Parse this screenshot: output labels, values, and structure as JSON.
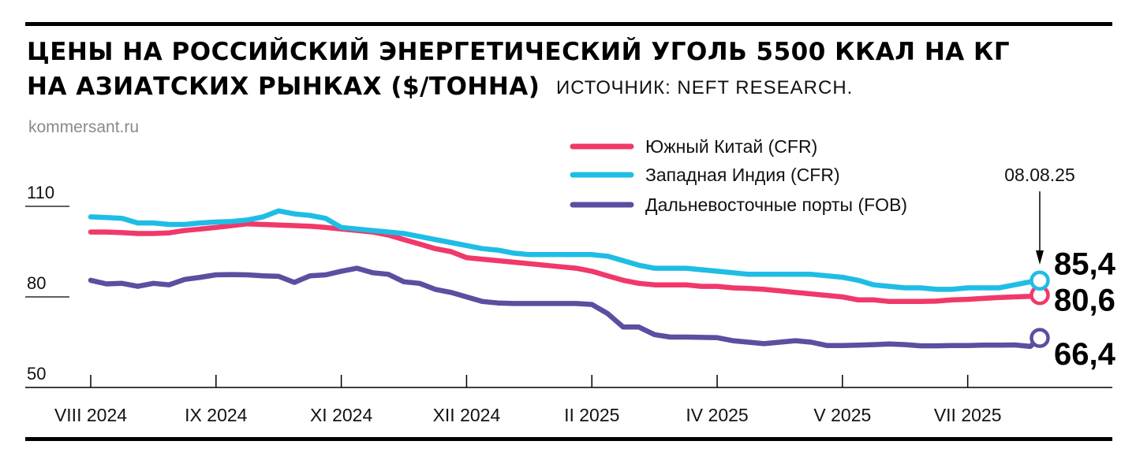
{
  "header": {
    "title_line1": "ЦЕНЫ НА РОССИЙСКИЙ ЭНЕРГЕТИЧЕСКИЙ УГОЛЬ 5500 ККАЛ НА КГ",
    "title_line2": "НА АЗИАТСКИХ РЫНКАХ ($/ТОННА)",
    "source": "ИСТОЧНИК: NEFT RESEARCH.",
    "site": "kommersant.ru"
  },
  "chart_data": {
    "type": "line",
    "title": "ЦЕНЫ НА РОССИЙСКИЙ ЭНЕРГЕТИЧЕСКИЙ УГОЛЬ 5500 ККАЛ НА КГ НА АЗИАТСКИХ РЫНКАХ ($/ТОННА)",
    "ylim": [
      50,
      115
    ],
    "yticks": [
      {
        "value": 110,
        "label": "110"
      },
      {
        "value": 80,
        "label": "80"
      },
      {
        "value": 50,
        "label": "50"
      }
    ],
    "xticks": [
      {
        "x": 0,
        "label": "VIII 2024"
      },
      {
        "x": 4,
        "label": "IX 2024"
      },
      {
        "x": 8,
        "label": "XI 2024"
      },
      {
        "x": 12,
        "label": "XII 2024"
      },
      {
        "x": 16,
        "label": "II 2025"
      },
      {
        "x": 20,
        "label": "IV 2025"
      },
      {
        "x": 24,
        "label": "V 2025"
      },
      {
        "x": 28,
        "label": "VII 2025"
      }
    ],
    "end_marker": {
      "x": 30.3,
      "label": "08.08.25"
    },
    "x": [
      0,
      0.5,
      1,
      1.5,
      2,
      2.5,
      3,
      3.5,
      4,
      4.5,
      5,
      5.5,
      6,
      6.5,
      7,
      7.5,
      8,
      8.5,
      9,
      9.5,
      10,
      10.5,
      11,
      11.5,
      12,
      12.5,
      13,
      13.5,
      14,
      14.5,
      15,
      15.5,
      16,
      16.5,
      17,
      17.5,
      18,
      18.5,
      19,
      19.5,
      20,
      20.5,
      21,
      21.5,
      22,
      22.5,
      23,
      23.5,
      24,
      24.5,
      25,
      25.5,
      26,
      26.5,
      27,
      27.5,
      28,
      28.5,
      29,
      29.5,
      30,
      30.3
    ],
    "series": [
      {
        "name": "Южный Китай (CFR)",
        "color": "#f0396a",
        "last_label": "80,6",
        "values": [
          101.5,
          101.5,
          101.3,
          101,
          101,
          101.2,
          102,
          102.5,
          103,
          103.6,
          104.2,
          104,
          103.8,
          103.6,
          103.4,
          103,
          102.5,
          102,
          101.5,
          100.5,
          99,
          97.5,
          96,
          95,
          93,
          92.5,
          92,
          91.5,
          91,
          90.5,
          90,
          89.5,
          88.5,
          87,
          85.5,
          84.5,
          84,
          84,
          84,
          83.5,
          83.5,
          83,
          82.8,
          82.5,
          82,
          81.5,
          81,
          80.5,
          80,
          79,
          79,
          78.5,
          78.5,
          78.5,
          78.6,
          79,
          79.2,
          79.5,
          79.8,
          80,
          80.2,
          80.6
        ]
      },
      {
        "name": "Западная Индия (CFR)",
        "color": "#1fbde6",
        "last_label": "85,4",
        "values": [
          106.5,
          106.3,
          106,
          104.5,
          104.5,
          104,
          104,
          104.5,
          104.8,
          105,
          105.5,
          106.5,
          108.5,
          107.5,
          107,
          106,
          103,
          102.5,
          102,
          101.5,
          101,
          100,
          99,
          98,
          97,
          96,
          95.5,
          94.5,
          94,
          94,
          94,
          94,
          94,
          93.5,
          92,
          90.5,
          89.5,
          89.5,
          89.5,
          89,
          88.5,
          88,
          87.5,
          87.5,
          87.5,
          87.5,
          87.5,
          87,
          86.5,
          85.5,
          84,
          83.5,
          83,
          83,
          82.5,
          82.5,
          83,
          83,
          83,
          84,
          85,
          85.4
        ]
      },
      {
        "name": "Дальневосточные порты (FOB)",
        "color": "#5a4fa0",
        "last_label": "66,4",
        "values": [
          85.5,
          84.3,
          84.5,
          83.5,
          84.5,
          84,
          85.8,
          86.5,
          87.3,
          87.4,
          87.3,
          87,
          86.8,
          84.8,
          87,
          87.3,
          88.5,
          89.5,
          88,
          87.5,
          85,
          84.5,
          82.5,
          81.5,
          80,
          78.5,
          78,
          77.8,
          77.8,
          77.8,
          77.8,
          77.8,
          77.5,
          74.5,
          70,
          70,
          67.5,
          66.7,
          66.7,
          66.6,
          66.5,
          65.5,
          65,
          64.5,
          65,
          65.5,
          65,
          63.9,
          63.9,
          64,
          64.2,
          64.4,
          64.2,
          63.8,
          63.8,
          63.9,
          63.9,
          64,
          64,
          64.1,
          63.6,
          66.4
        ]
      }
    ]
  }
}
